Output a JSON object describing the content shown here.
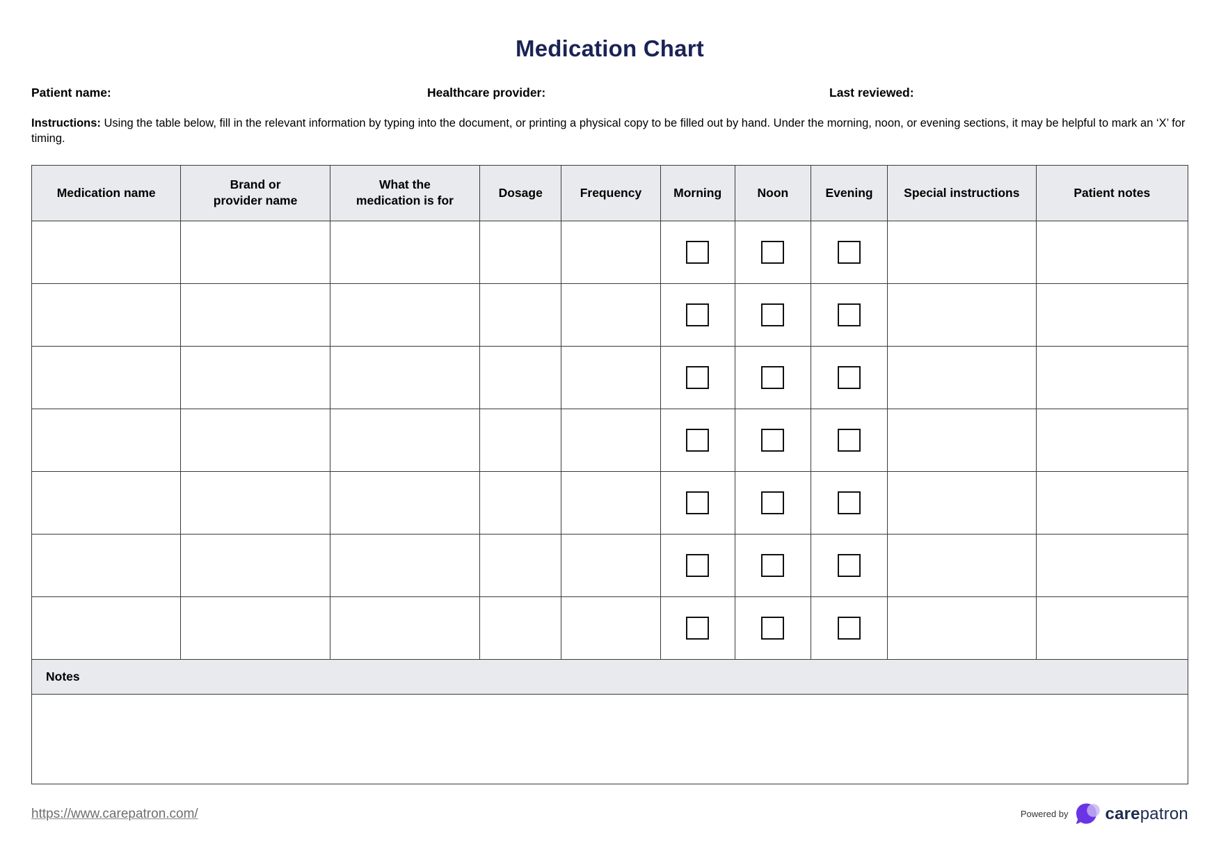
{
  "title": "Medication Chart",
  "fields": {
    "patient_name_label": "Patient name:",
    "patient_name_value": "",
    "healthcare_provider_label": "Healthcare provider:",
    "healthcare_provider_value": "",
    "last_reviewed_label": "Last reviewed:",
    "last_reviewed_value": ""
  },
  "instructions": {
    "label": "Instructions:",
    "text": " Using the table below, fill in the relevant information by typing into the document, or printing a physical copy to be filled out by hand. Under the morning, noon, or evening sections, it may be helpful to mark an ‘X’ for timing."
  },
  "table": {
    "columns": [
      {
        "label": "Medication name",
        "type": "text"
      },
      {
        "label": "Brand or\nprovider name",
        "type": "text"
      },
      {
        "label": "What the\nmedication is for",
        "type": "text"
      },
      {
        "label": "Dosage",
        "type": "text"
      },
      {
        "label": "Frequency",
        "type": "text"
      },
      {
        "label": "Morning",
        "type": "checkbox"
      },
      {
        "label": "Noon",
        "type": "checkbox"
      },
      {
        "label": "Evening",
        "type": "checkbox"
      },
      {
        "label": "Special instructions",
        "type": "text"
      },
      {
        "label": "Patient notes",
        "type": "text"
      }
    ],
    "row_count": 7,
    "rows": [
      {
        "values": [
          "",
          "",
          "",
          "",
          "",
          false,
          false,
          false,
          "",
          ""
        ]
      },
      {
        "values": [
          "",
          "",
          "",
          "",
          "",
          false,
          false,
          false,
          "",
          ""
        ]
      },
      {
        "values": [
          "",
          "",
          "",
          "",
          "",
          false,
          false,
          false,
          "",
          ""
        ]
      },
      {
        "values": [
          "",
          "",
          "",
          "",
          "",
          false,
          false,
          false,
          "",
          ""
        ]
      },
      {
        "values": [
          "",
          "",
          "",
          "",
          "",
          false,
          false,
          false,
          "",
          ""
        ]
      },
      {
        "values": [
          "",
          "",
          "",
          "",
          "",
          false,
          false,
          false,
          "",
          ""
        ]
      },
      {
        "values": [
          "",
          "",
          "",
          "",
          "",
          false,
          false,
          false,
          "",
          ""
        ]
      }
    ],
    "notes_label": "Notes",
    "notes_value": ""
  },
  "footer": {
    "link": "https://www.carepatron.com/",
    "powered_by_label": "Powered by",
    "brand_bold": "care",
    "brand_regular": "patron"
  },
  "colors": {
    "title_navy": "#1b2355",
    "header_gray": "#e8eaed",
    "border_dark": "#3a3a3a",
    "link_gray": "#6f6f6f",
    "brand_navy": "#1d2b4f",
    "logo_purple": "#6a34e6",
    "logo_lavender": "#c6b4f1"
  }
}
